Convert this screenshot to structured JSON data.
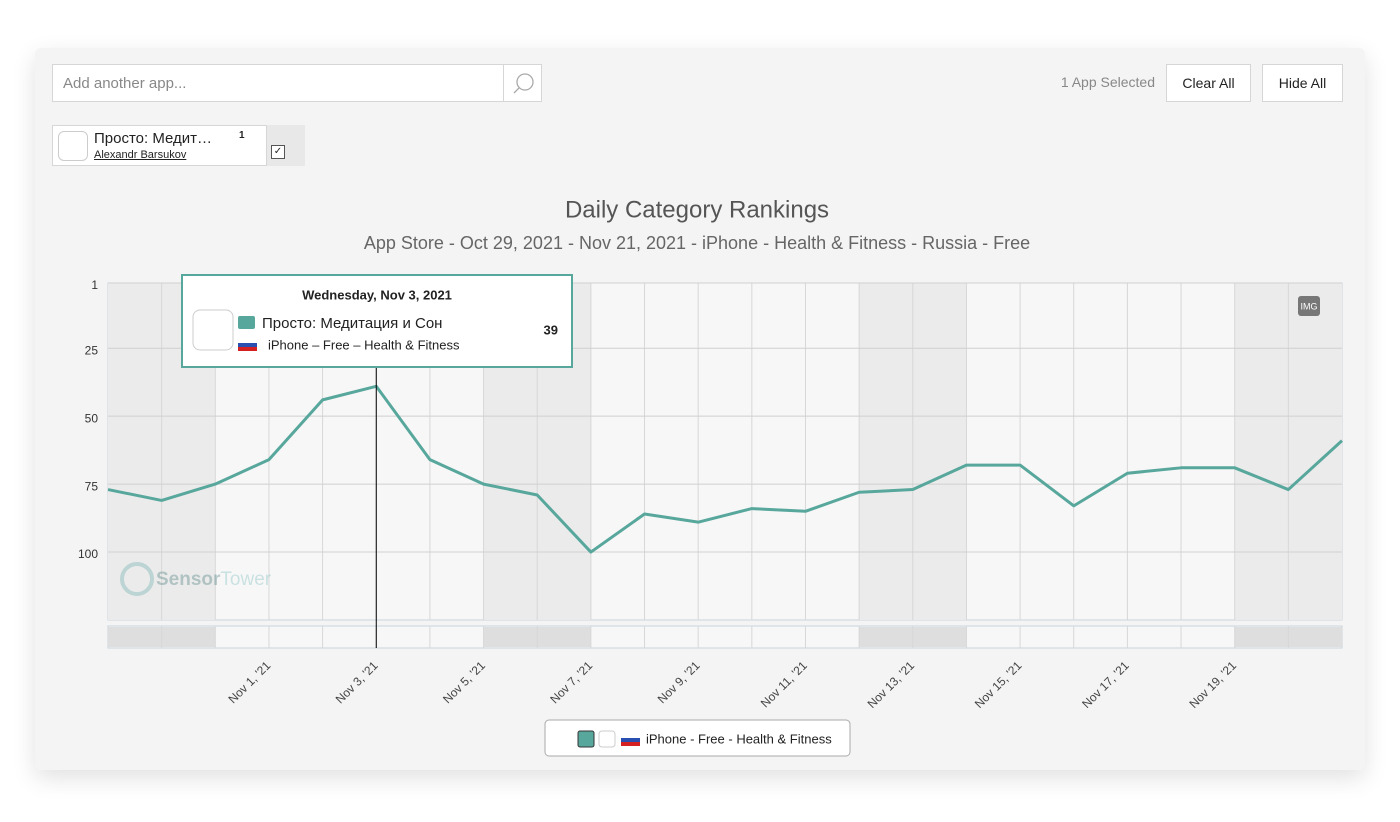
{
  "search": {
    "placeholder": "Add another app..."
  },
  "toolbar": {
    "selected": "1 App Selected",
    "clear_all": "Clear All",
    "hide_all": "Hide All"
  },
  "app_chip": {
    "name": "Просто: Медит…",
    "count": "1",
    "developer": "Alexandr Barsukov"
  },
  "tooltip": {
    "date": "Wednesday, Nov 3, 2021",
    "app": "Просто: Медитация и Сон",
    "detail": "iPhone – Free – Health & Fitness"
  },
  "img_button": "IMG",
  "watermark": {
    "part1": "Sensor",
    "part2": "Tower"
  },
  "chart_data": {
    "type": "line",
    "title": "Daily Category Rankings",
    "subtitle": "App Store - Oct 29, 2021 - Nov 21, 2021 - iPhone - Health & Fitness - Russia - Free",
    "categories": [
      null,
      null,
      null,
      "Nov 1, '21",
      null,
      "Nov 3, '21",
      null,
      "Nov 5, '21",
      null,
      "Nov 7, '21",
      null,
      "Nov 9, '21",
      null,
      "Nov 11, '21",
      null,
      "Nov 13, '21",
      null,
      "Nov 15, '21",
      null,
      "Nov 17, '21",
      null,
      "Nov 19, '21",
      null,
      null
    ],
    "series": [
      {
        "name": "iPhone - Free - Health & Fitness",
        "color": "#58a79c",
        "values": [
          77,
          81,
          75,
          66,
          44,
          39,
          66,
          75,
          79,
          100,
          86,
          89,
          84,
          85,
          78,
          77,
          68,
          68,
          83,
          71,
          69,
          69,
          77,
          59
        ]
      }
    ],
    "ylim": [
      1,
      125
    ],
    "yticks": [
      1,
      25,
      50,
      75,
      100
    ],
    "y_inverted": true,
    "grid": true
  }
}
